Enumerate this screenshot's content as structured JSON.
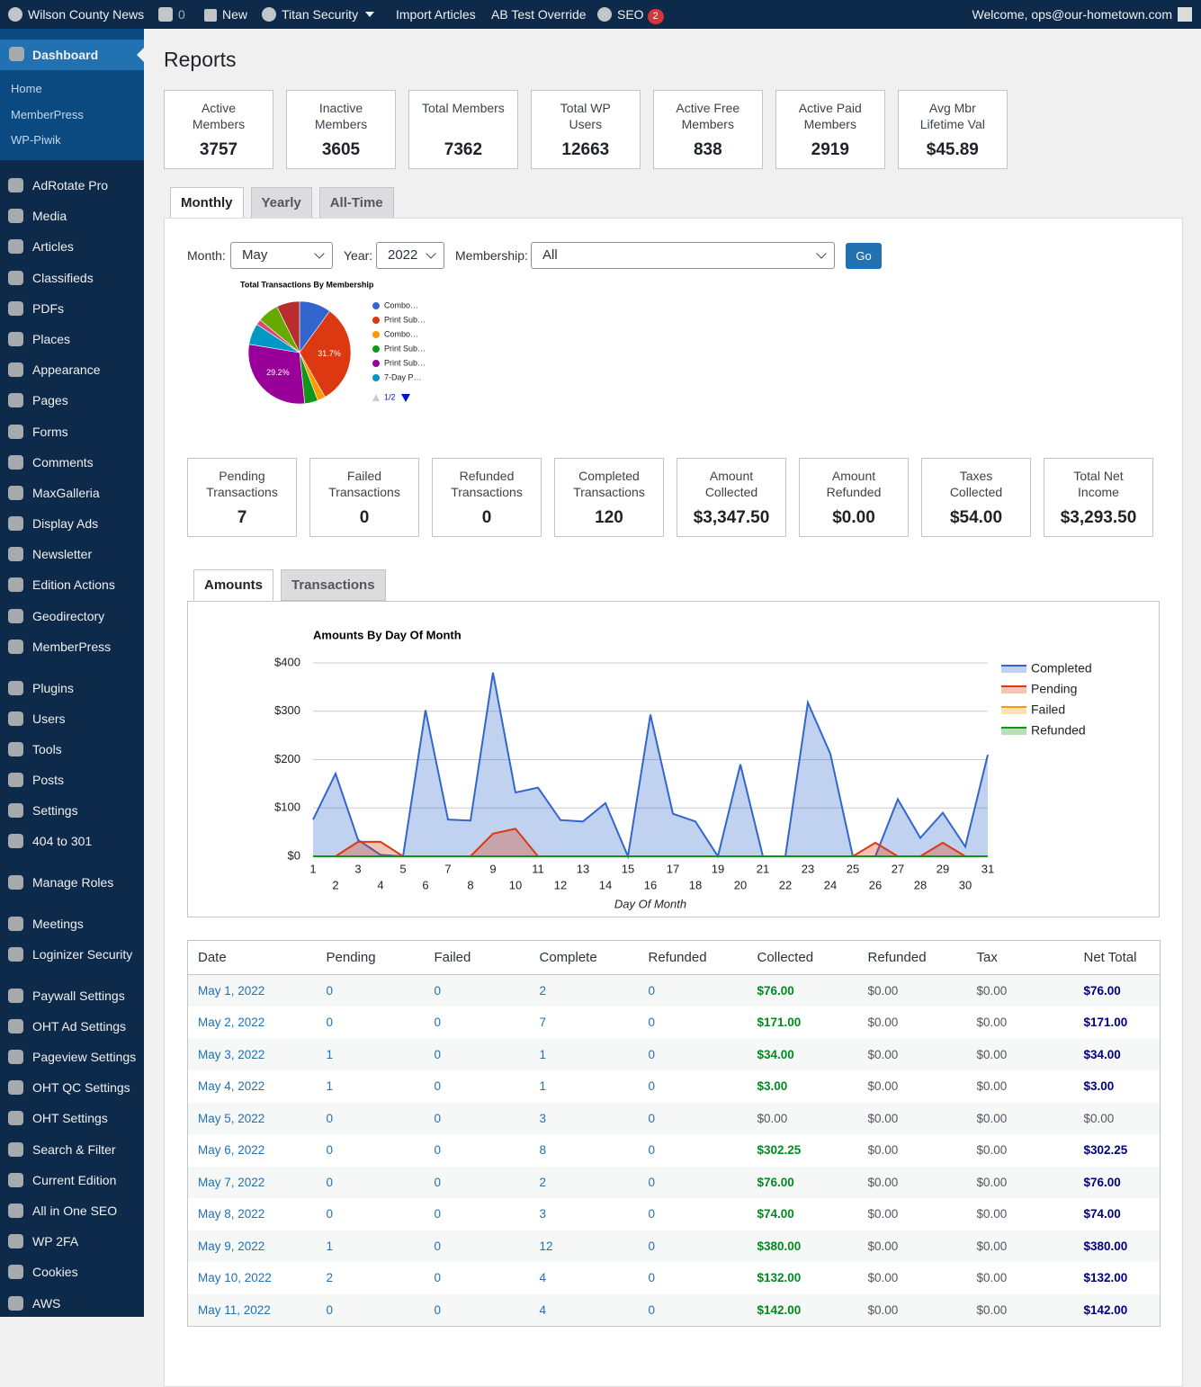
{
  "admin_bar": {
    "site": "Wilson County News",
    "comments": "0",
    "new": "New",
    "security": "Titan Security",
    "import": "Import Articles",
    "ab_test": "AB Test Override",
    "seo": "SEO",
    "seo_count": "2",
    "welcome": "Welcome, ops@our-hometown.com"
  },
  "sidebar": {
    "dashboard": "Dashboard",
    "submenu": [
      "Home",
      "MemberPress",
      "WP-Piwik"
    ],
    "groups": [
      [
        "AdRotate Pro",
        "Media",
        "Articles",
        "Classifieds",
        "PDFs",
        "Places",
        "Appearance",
        "Pages",
        "Forms",
        "Comments",
        "MaxGalleria",
        "Display Ads",
        "Newsletter",
        "Edition Actions",
        "Geodirectory",
        "MemberPress"
      ],
      [
        "Plugins",
        "Users",
        "Tools",
        "Posts",
        "Settings",
        "404 to 301"
      ],
      [
        "Manage Roles"
      ],
      [
        "Meetings",
        "Loginizer Security"
      ],
      [
        "Paywall Settings",
        "OHT Ad Settings",
        "Pageview Settings",
        "OHT QC Settings",
        "OHT Settings",
        "Search & Filter",
        "Current Edition",
        "All in One SEO",
        "WP 2FA",
        "Cookies",
        "AWS"
      ]
    ]
  },
  "page_title": "Reports",
  "member_stats": [
    {
      "label": "Active Members",
      "value": "3757"
    },
    {
      "label": "Inactive Members",
      "value": "3605"
    },
    {
      "label": "Total Members",
      "value": "7362"
    },
    {
      "label": "Total WP Users",
      "value": "12663"
    },
    {
      "label": "Active Free Members",
      "value": "838"
    },
    {
      "label": "Active Paid Members",
      "value": "2919"
    },
    {
      "label": "Avg Mbr Lifetime Val",
      "value": "$45.89"
    }
  ],
  "period_tabs": [
    "Monthly",
    "Yearly",
    "All-Time"
  ],
  "filters": {
    "month_label": "Month:",
    "month": "May",
    "year_label": "Year:",
    "year": "2022",
    "membership_label": "Membership:",
    "membership": "All",
    "button": "Go"
  },
  "transaction_stats": [
    {
      "label": "Pending Transactions",
      "value": "7"
    },
    {
      "label": "Failed Transactions",
      "value": "0"
    },
    {
      "label": "Refunded Transactions",
      "value": "0"
    },
    {
      "label": "Completed Transactions",
      "value": "120"
    },
    {
      "label": "Amount Collected",
      "value": "$3,347.50"
    },
    {
      "label": "Amount Refunded",
      "value": "$0.00"
    },
    {
      "label": "Taxes Collected",
      "value": "$54.00"
    },
    {
      "label": "Total Net Income",
      "value": "$3,293.50"
    }
  ],
  "chart_tabs": [
    "Amounts",
    "Transactions"
  ],
  "chart_data": [
    {
      "type": "pie",
      "title": "Total Transactions By Membership",
      "categories": [
        "Combo…",
        "Print Sub…",
        "Combo…",
        "Print Sub…",
        "Print Sub…",
        "7-Day P…",
        null,
        null,
        null
      ],
      "values": [
        10,
        31.7,
        2.5,
        4.2,
        29.2,
        6.7,
        1.7,
        6.7,
        7.3
      ],
      "value_labels": [
        null,
        "31.7%",
        null,
        null,
        "29.2%",
        null,
        null,
        null,
        null
      ],
      "colors": [
        "#3366cc",
        "#dc3912",
        "#ff9900",
        "#109618",
        "#990099",
        "#0099c6",
        "#dd4477",
        "#66aa00",
        "#b82e2e"
      ],
      "legend_page": "1/2"
    },
    {
      "type": "area",
      "title": "Amounts By Day Of Month",
      "xlabel": "Day Of Month",
      "x": [
        1,
        2,
        3,
        4,
        5,
        6,
        7,
        8,
        9,
        10,
        11,
        12,
        13,
        14,
        15,
        16,
        17,
        18,
        19,
        20,
        21,
        22,
        23,
        24,
        25,
        26,
        27,
        28,
        29,
        30,
        31
      ],
      "xlim": [
        1,
        31
      ],
      "xticks": [
        1,
        2,
        3,
        4,
        5,
        6,
        7,
        8,
        9,
        10,
        11,
        12,
        13,
        14,
        15,
        16,
        17,
        18,
        19,
        20,
        21,
        22,
        23,
        24,
        25,
        26,
        27,
        28,
        29,
        30,
        31
      ],
      "ylim": [
        0,
        400
      ],
      "yticks": [
        {
          "value": 0,
          "label": "$0"
        },
        {
          "value": 100,
          "label": "$100"
        },
        {
          "value": 200,
          "label": "$200"
        },
        {
          "value": 300,
          "label": "$300"
        },
        {
          "value": 400,
          "label": "$400"
        }
      ],
      "grid": true,
      "legend": "right",
      "series": [
        {
          "name": "Completed",
          "color": "#3366cc",
          "values": [
            76,
            171,
            34,
            3,
            0,
            302.25,
            76,
            74,
            380,
            132,
            142,
            75,
            72,
            110,
            0,
            293,
            88,
            72,
            0,
            190,
            0,
            0,
            318,
            212,
            0,
            0,
            118,
            38,
            90,
            20,
            210
          ]
        },
        {
          "name": "Pending",
          "color": "#dc3912",
          "values": [
            0,
            0,
            30,
            30,
            0,
            0,
            0,
            0,
            47,
            57,
            0,
            0,
            0,
            0,
            0,
            0,
            0,
            0,
            0,
            0,
            0,
            0,
            0,
            0,
            0,
            28,
            0,
            0,
            28,
            0,
            0
          ]
        },
        {
          "name": "Failed",
          "color": "#ff9900",
          "values": [
            0,
            0,
            0,
            0,
            0,
            0,
            0,
            0,
            0,
            0,
            0,
            0,
            0,
            0,
            0,
            0,
            0,
            0,
            0,
            0,
            0,
            0,
            0,
            0,
            0,
            0,
            0,
            0,
            0,
            0,
            0
          ]
        },
        {
          "name": "Refunded",
          "color": "#109618",
          "values": [
            0,
            0,
            0,
            0,
            0,
            0,
            0,
            0,
            0,
            0,
            0,
            0,
            0,
            0,
            0,
            0,
            0,
            0,
            0,
            0,
            0,
            0,
            0,
            0,
            0,
            0,
            0,
            0,
            0,
            0,
            0
          ]
        }
      ]
    }
  ],
  "table": {
    "columns": [
      "Date",
      "Pending",
      "Failed",
      "Complete",
      "Refunded",
      "Collected",
      "Refunded",
      "Tax",
      "Net Total"
    ],
    "rows": [
      [
        "May 1, 2022",
        "0",
        "0",
        "2",
        "0",
        "$76.00",
        "$0.00",
        "$0.00",
        "$76.00"
      ],
      [
        "May 2, 2022",
        "0",
        "0",
        "7",
        "0",
        "$171.00",
        "$0.00",
        "$0.00",
        "$171.00"
      ],
      [
        "May 3, 2022",
        "1",
        "0",
        "1",
        "0",
        "$34.00",
        "$0.00",
        "$0.00",
        "$34.00"
      ],
      [
        "May 4, 2022",
        "1",
        "0",
        "1",
        "0",
        "$3.00",
        "$0.00",
        "$0.00",
        "$3.00"
      ],
      [
        "May 5, 2022",
        "0",
        "0",
        "3",
        "0",
        "$0.00",
        "$0.00",
        "$0.00",
        "$0.00"
      ],
      [
        "May 6, 2022",
        "0",
        "0",
        "8",
        "0",
        "$302.25",
        "$0.00",
        "$0.00",
        "$302.25"
      ],
      [
        "May 7, 2022",
        "0",
        "0",
        "2",
        "0",
        "$76.00",
        "$0.00",
        "$0.00",
        "$76.00"
      ],
      [
        "May 8, 2022",
        "0",
        "0",
        "3",
        "0",
        "$74.00",
        "$0.00",
        "$0.00",
        "$74.00"
      ],
      [
        "May 9, 2022",
        "1",
        "0",
        "12",
        "0",
        "$380.00",
        "$0.00",
        "$0.00",
        "$380.00"
      ],
      [
        "May 10, 2022",
        "2",
        "0",
        "4",
        "0",
        "$132.00",
        "$0.00",
        "$0.00",
        "$132.00"
      ],
      [
        "May 11, 2022",
        "0",
        "0",
        "4",
        "0",
        "$142.00",
        "$0.00",
        "$0.00",
        "$142.00"
      ]
    ]
  }
}
